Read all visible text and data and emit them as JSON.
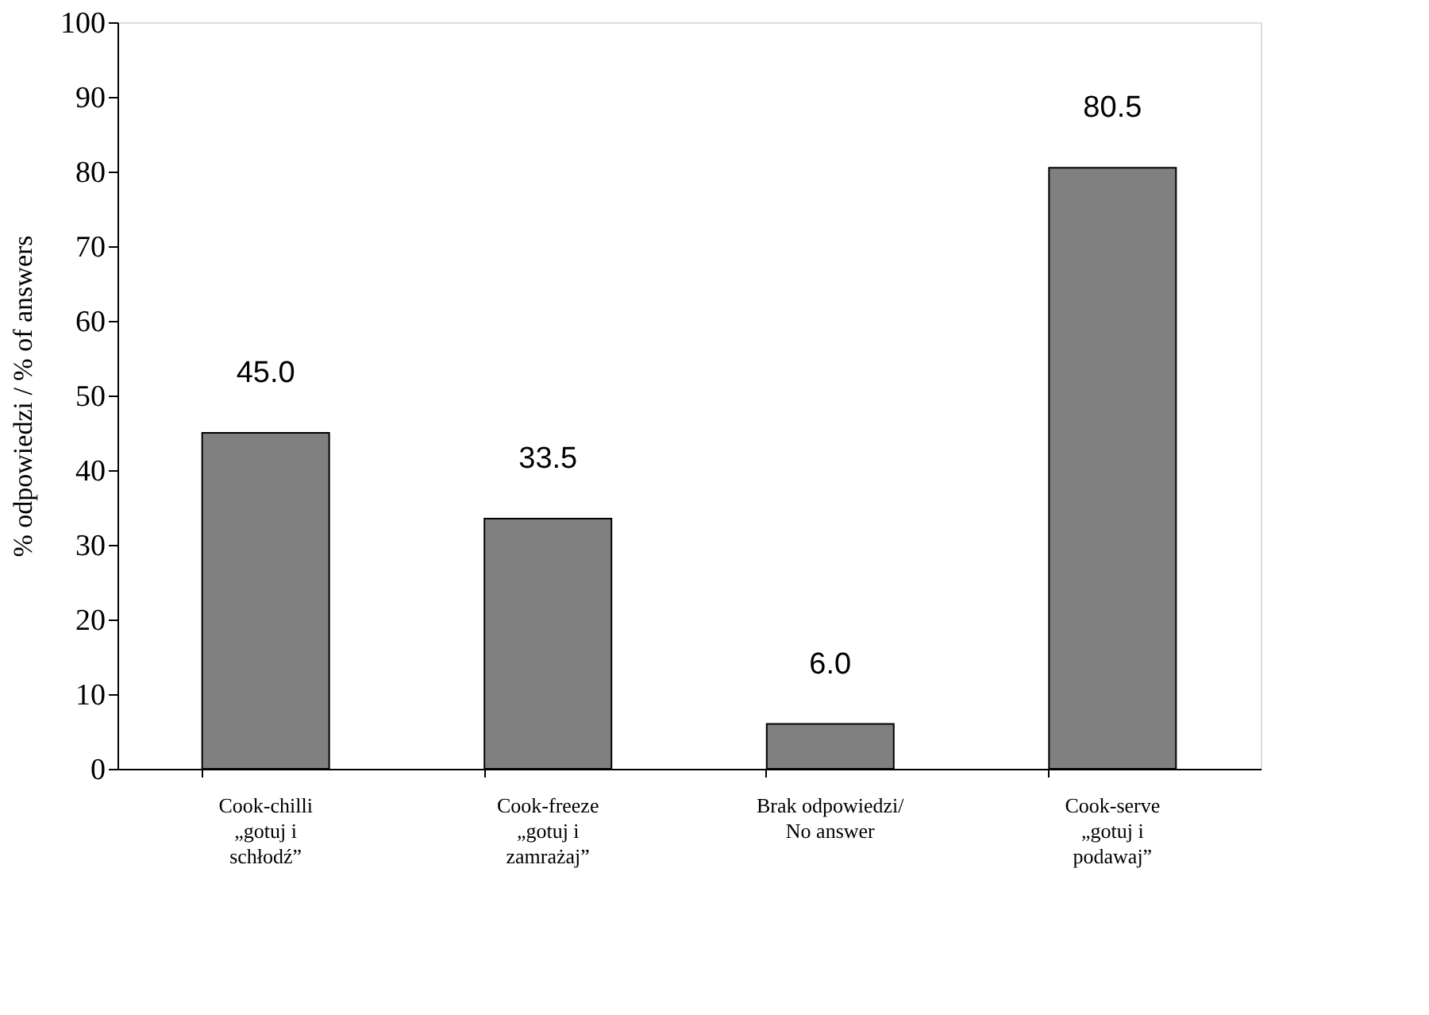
{
  "chart_data": {
    "type": "bar",
    "ylabel": "% odpowiedzi / % of answers",
    "categories": [
      "Cook-chilli\n\n„gotuj i\nschłodź”",
      "Cook-freeze\n\n„gotuj i\nzamrażaj”",
      "Brak odpowiedzi/\nNo answer",
      "Cook-serve\n\n„gotuj i\npodawaj”"
    ],
    "values": [
      45.0,
      33.5,
      6.0,
      80.5
    ],
    "value_labels": [
      "45.0",
      "33.5",
      "6.0",
      "80.5"
    ],
    "color": "#808080",
    "ylim": [
      0,
      100
    ],
    "yticks": [
      0,
      10,
      20,
      30,
      40,
      50,
      60,
      70,
      80,
      90,
      100
    ],
    "grid": false
  }
}
